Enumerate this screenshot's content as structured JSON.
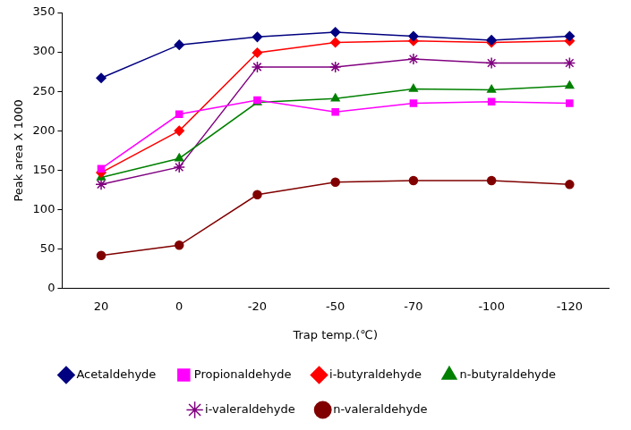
{
  "chart_data": {
    "type": "line",
    "x_label": "Trap temp.(℃)",
    "y_label": "Peak area X 1000",
    "categories": [
      "20",
      "0",
      "-20",
      "-50",
      "-70",
      "-100",
      "-120"
    ],
    "ylim": [
      0,
      350
    ],
    "yticks": [
      0,
      50,
      100,
      150,
      200,
      250,
      300,
      350
    ],
    "grid": false,
    "legend": "bottom",
    "series": [
      {
        "name": "Acetaldehyde",
        "color": "#000080",
        "marker": "diamond",
        "values": [
          267,
          309,
          319,
          325,
          320,
          315,
          320
        ]
      },
      {
        "name": "Propionaldehyde",
        "color": "#ff00ff",
        "marker": "square",
        "values": [
          152,
          221,
          239,
          224,
          235,
          237,
          235
        ]
      },
      {
        "name": "i-butyraldehyde",
        "color": "#ff0000",
        "marker": "diamond",
        "values": [
          147,
          200,
          299,
          312,
          314,
          312,
          314
        ]
      },
      {
        "name": "n-butyraldehyde",
        "color": "#008000",
        "marker": "triangle",
        "values": [
          141,
          165,
          236,
          241,
          253,
          252,
          257
        ]
      },
      {
        "name": "i-valeraldehyde",
        "color": "#800080",
        "marker": "star",
        "values": [
          132,
          154,
          281,
          281,
          291,
          286,
          286
        ]
      },
      {
        "name": "n-valeraldehyde",
        "color": "#800000",
        "marker": "circle",
        "values": [
          42,
          55,
          119,
          135,
          137,
          137,
          132
        ]
      }
    ]
  }
}
